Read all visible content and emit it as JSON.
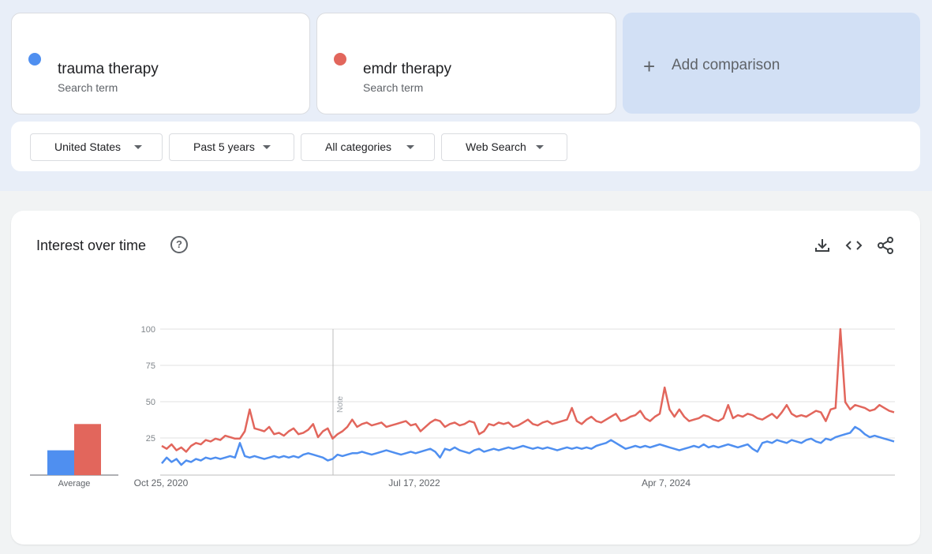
{
  "terms": [
    {
      "name": "trauma therapy",
      "sub": "Search term",
      "color": "#4f8ff0"
    },
    {
      "name": "emdr therapy",
      "sub": "Search term",
      "color": "#e2665c"
    }
  ],
  "add_comparison": {
    "icon": "plus",
    "label": "Add comparison"
  },
  "filters": {
    "region": "United States",
    "time": "Past 5 years",
    "category": "All categories",
    "search_type": "Web Search"
  },
  "panel": {
    "title": "Interest over time",
    "icons": [
      "help-icon",
      "download-icon",
      "embed-icon",
      "share-icon"
    ]
  },
  "chart_data": {
    "type": "line",
    "ylim": [
      0,
      100
    ],
    "yticks": [
      "100",
      "75",
      "50",
      "25"
    ],
    "x_tick_labels": [
      "Oct 25, 2020",
      "Jul 17, 2022",
      "Apr 7, 2024"
    ],
    "note_label": "Note",
    "grid": true,
    "average": {
      "label": "Average",
      "values": [
        17,
        35
      ]
    },
    "series": [
      {
        "name": "trauma therapy",
        "color": "#4f8ff0",
        "values": [
          8,
          12,
          9,
          11,
          7,
          10,
          9,
          11,
          10,
          12,
          11,
          12,
          11,
          12,
          13,
          12,
          12,
          13,
          12,
          13,
          12,
          11,
          12,
          13,
          12,
          13,
          12,
          13,
          12,
          14,
          15,
          14,
          13,
          12,
          10,
          11,
          12,
          13,
          14,
          15,
          15,
          16,
          15,
          14,
          15,
          16,
          17,
          16,
          15,
          14,
          15,
          16,
          15,
          16,
          17,
          18,
          16,
          17,
          18,
          17,
          19,
          17,
          16,
          15,
          17,
          18,
          16,
          17,
          18,
          17,
          18,
          19,
          18,
          19,
          20,
          19,
          18,
          19,
          18,
          19,
          18,
          17,
          18,
          19,
          18,
          19,
          18,
          19,
          18,
          20,
          21,
          22,
          24,
          22,
          20,
          18,
          19,
          20,
          19,
          20,
          19,
          20,
          21,
          20,
          19,
          18,
          17,
          18,
          19,
          20,
          19,
          21,
          19,
          20,
          19,
          20,
          21,
          20,
          19,
          20,
          21,
          18,
          16,
          22,
          23,
          22,
          24,
          23,
          22,
          24,
          23,
          22,
          24,
          25,
          23,
          22,
          25,
          24,
          26,
          27,
          28,
          29,
          33,
          31,
          28,
          26,
          27,
          26,
          25,
          24,
          23
        ],
        "mods": [
          [
            16,
            22
          ],
          [
            36,
            14
          ],
          [
            57,
            12
          ]
        ]
      },
      {
        "name": "emdr therapy",
        "color": "#e2665c",
        "values": [
          20,
          18,
          21,
          17,
          19,
          16,
          20,
          22,
          21,
          24,
          23,
          25,
          24,
          27,
          26,
          25,
          28,
          30,
          45,
          32,
          31,
          30,
          33,
          28,
          29,
          27,
          30,
          32,
          28,
          29,
          31,
          35,
          26,
          30,
          32,
          25,
          28,
          30,
          33,
          38,
          33,
          35,
          36,
          34,
          35,
          36,
          33,
          34,
          35,
          36,
          37,
          34,
          35,
          30,
          33,
          36,
          38,
          37,
          33,
          35,
          36,
          34,
          35,
          37,
          36,
          28,
          30,
          35,
          34,
          36,
          35,
          36,
          33,
          34,
          36,
          38,
          35,
          34,
          36,
          37,
          35,
          36,
          37,
          38,
          46,
          37,
          35,
          38,
          40,
          37,
          36,
          38,
          40,
          42,
          37,
          38,
          40,
          41,
          44,
          39,
          37,
          40,
          42,
          60,
          45,
          40,
          45,
          40,
          37,
          38,
          39,
          41,
          40,
          38,
          37,
          39,
          40,
          39,
          41,
          40,
          42,
          41,
          39,
          38,
          40,
          42,
          39,
          43,
          48,
          42,
          40,
          41,
          40,
          42,
          44,
          43,
          42,
          45,
          46,
          100,
          50,
          45,
          48,
          47,
          46,
          44,
          45,
          48,
          46,
          44,
          43
        ],
        "mods": [
          [
            16,
            25
          ],
          [
            116,
            48
          ],
          [
            136,
            37
          ]
        ]
      }
    ]
  }
}
